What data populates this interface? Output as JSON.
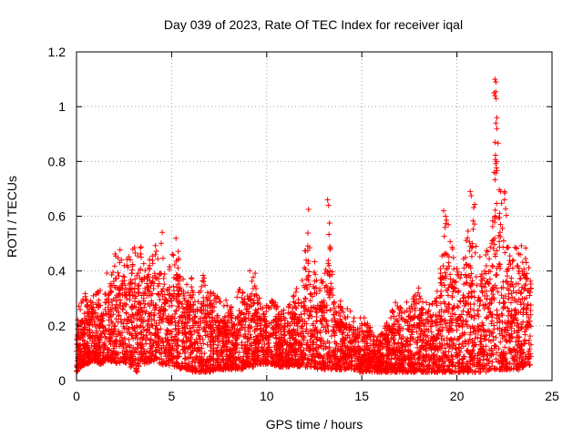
{
  "chart_data": {
    "type": "scatter",
    "title": "Day 039 of 2023, Rate Of TEC Index for receiver iqal",
    "xlabel": "GPS time / hours",
    "ylabel": "ROTI / TECUs",
    "xlim": [
      0,
      25
    ],
    "ylim": [
      0,
      1.2
    ],
    "x_ticks": [
      0,
      5,
      10,
      15,
      20,
      25
    ],
    "x_tick_labels": [
      "0",
      "5",
      "10",
      "15",
      "20",
      "25"
    ],
    "y_ticks": [
      0,
      0.2,
      0.4,
      0.6,
      0.8,
      1.0,
      1.2
    ],
    "y_tick_labels": [
      "0",
      "0.2",
      "0.4",
      "0.6",
      "0.8",
      "1",
      "1.2"
    ],
    "grid": true,
    "marker": "+",
    "color": "#ff0000",
    "series": [
      {
        "name": "ROTI",
        "x": [
          0.0,
          0.15,
          0.3,
          0.45,
          0.6,
          0.8,
          1.0,
          1.2,
          1.4,
          1.6,
          1.8,
          2.0,
          2.2,
          2.4,
          2.6,
          2.8,
          3.0,
          3.2,
          3.35,
          3.5,
          3.7,
          3.9,
          4.1,
          4.3,
          4.5,
          4.7,
          4.9,
          5.1,
          5.3,
          5.5,
          5.7,
          5.9,
          6.1,
          6.3,
          6.5,
          6.7,
          6.9,
          7.1,
          7.3,
          7.5,
          7.7,
          7.9,
          8.1,
          8.3,
          8.5,
          8.7,
          8.9,
          9.1,
          9.3,
          9.5,
          9.7,
          9.9,
          10.1,
          10.3,
          10.5,
          10.7,
          10.9,
          11.1,
          11.3,
          11.5,
          11.7,
          11.9,
          12.1,
          12.3,
          12.5,
          12.7,
          12.9,
          13.1,
          13.3,
          13.5,
          13.7,
          13.9,
          14.1,
          14.3,
          14.5,
          14.7,
          14.9,
          15.1,
          15.3,
          15.5,
          15.7,
          15.9,
          16.1,
          16.3,
          16.5,
          16.7,
          16.9,
          17.1,
          17.3,
          17.5,
          17.7,
          17.9,
          18.1,
          18.3,
          18.5,
          18.7,
          18.9,
          19.1,
          19.3,
          19.5,
          19.7,
          19.9,
          20.1,
          20.3,
          20.5,
          20.7,
          20.9,
          21.1,
          21.3,
          21.5,
          21.7,
          21.9,
          22.0,
          22.1,
          22.3,
          22.5,
          22.7,
          22.9,
          23.1,
          23.3,
          23.5,
          23.7,
          23.9
        ],
        "low": [
          0.03,
          0.04,
          0.05,
          0.06,
          0.06,
          0.07,
          0.07,
          0.06,
          0.06,
          0.07,
          0.07,
          0.06,
          0.06,
          0.07,
          0.06,
          0.05,
          0.04,
          0.03,
          0.05,
          0.06,
          0.06,
          0.07,
          0.07,
          0.06,
          0.06,
          0.05,
          0.05,
          0.05,
          0.05,
          0.04,
          0.04,
          0.04,
          0.03,
          0.03,
          0.03,
          0.03,
          0.03,
          0.03,
          0.04,
          0.04,
          0.04,
          0.04,
          0.04,
          0.04,
          0.04,
          0.04,
          0.05,
          0.05,
          0.05,
          0.06,
          0.06,
          0.06,
          0.06,
          0.06,
          0.05,
          0.05,
          0.05,
          0.05,
          0.05,
          0.05,
          0.05,
          0.05,
          0.05,
          0.05,
          0.05,
          0.04,
          0.04,
          0.04,
          0.04,
          0.04,
          0.04,
          0.04,
          0.04,
          0.04,
          0.04,
          0.04,
          0.03,
          0.03,
          0.03,
          0.03,
          0.03,
          0.03,
          0.03,
          0.03,
          0.03,
          0.03,
          0.03,
          0.03,
          0.03,
          0.03,
          0.03,
          0.03,
          0.03,
          0.03,
          0.03,
          0.03,
          0.03,
          0.03,
          0.03,
          0.03,
          0.03,
          0.03,
          0.03,
          0.03,
          0.03,
          0.03,
          0.03,
          0.03,
          0.03,
          0.03,
          0.04,
          0.04,
          0.04,
          0.04,
          0.04,
          0.04,
          0.04,
          0.04,
          0.04,
          0.04,
          0.05,
          0.05,
          0.06
        ],
        "high": [
          0.2,
          0.3,
          0.3,
          0.32,
          0.28,
          0.33,
          0.32,
          0.35,
          0.3,
          0.42,
          0.4,
          0.46,
          0.5,
          0.48,
          0.45,
          0.47,
          0.5,
          0.49,
          0.56,
          0.44,
          0.43,
          0.46,
          0.5,
          0.52,
          0.56,
          0.4,
          0.42,
          0.52,
          0.54,
          0.4,
          0.36,
          0.36,
          0.38,
          0.33,
          0.35,
          0.41,
          0.32,
          0.33,
          0.33,
          0.3,
          0.27,
          0.3,
          0.28,
          0.27,
          0.34,
          0.33,
          0.3,
          0.4,
          0.44,
          0.35,
          0.28,
          0.28,
          0.27,
          0.3,
          0.28,
          0.26,
          0.28,
          0.27,
          0.3,
          0.36,
          0.3,
          0.38,
          0.62,
          0.5,
          0.44,
          0.4,
          0.38,
          0.4,
          0.66,
          0.32,
          0.28,
          0.3,
          0.27,
          0.26,
          0.25,
          0.22,
          0.25,
          0.24,
          0.21,
          0.2,
          0.17,
          0.18,
          0.19,
          0.22,
          0.24,
          0.3,
          0.28,
          0.26,
          0.28,
          0.32,
          0.3,
          0.33,
          0.36,
          0.3,
          0.3,
          0.28,
          0.3,
          0.4,
          0.6,
          0.62,
          0.5,
          0.45,
          0.4,
          0.42,
          0.57,
          0.55,
          0.7,
          0.5,
          0.45,
          0.48,
          0.5,
          0.6,
          1.1,
          1.08,
          0.7,
          0.7,
          0.52,
          0.45,
          0.5,
          0.47,
          0.56,
          0.45,
          0.4
        ],
        "highlights": [
          {
            "x": 12.2,
            "y": 0.625
          },
          {
            "x": 13.2,
            "y": 0.66
          },
          {
            "x": 13.25,
            "y": 0.64
          },
          {
            "x": 13.3,
            "y": 0.575
          },
          {
            "x": 19.3,
            "y": 0.62
          },
          {
            "x": 19.4,
            "y": 0.6
          },
          {
            "x": 20.7,
            "y": 0.69
          },
          {
            "x": 20.75,
            "y": 0.675
          },
          {
            "x": 22.0,
            "y": 1.1
          },
          {
            "x": 22.05,
            "y": 1.09
          },
          {
            "x": 21.95,
            "y": 1.05
          },
          {
            "x": 22.0,
            "y": 1.04
          },
          {
            "x": 22.1,
            "y": 0.96
          },
          {
            "x": 22.05,
            "y": 0.94
          },
          {
            "x": 22.1,
            "y": 0.92
          },
          {
            "x": 22.0,
            "y": 0.87
          },
          {
            "x": 21.95,
            "y": 0.76
          },
          {
            "x": 22.3,
            "y": 0.69
          },
          {
            "x": 22.5,
            "y": 0.69
          },
          {
            "x": 22.5,
            "y": 0.66
          },
          {
            "x": 22.0,
            "y": 0.6
          }
        ]
      }
    ]
  }
}
